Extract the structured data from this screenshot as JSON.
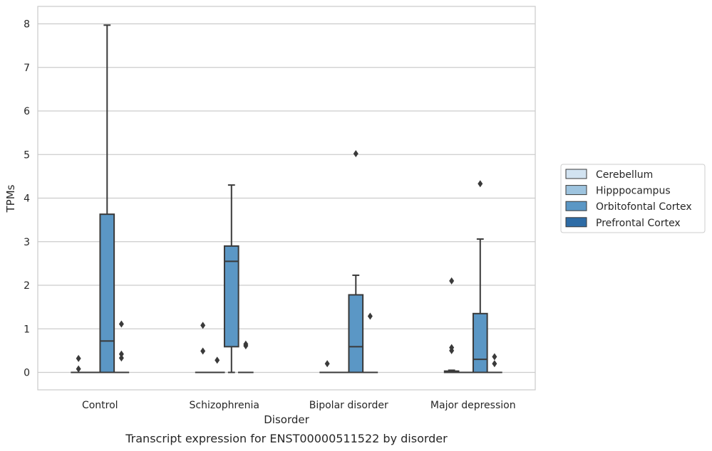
{
  "chart_data": {
    "type": "box",
    "xlabel": "Disorder",
    "ylabel": "TPMs",
    "caption": "Transcript expression for ENST00000511522 by disorder",
    "categories": [
      "Control",
      "Schizophrenia",
      "Bipolar disorder",
      "Major depression"
    ],
    "yticks": [
      "0",
      "1",
      "2",
      "3",
      "4",
      "5",
      "6",
      "7",
      "8"
    ],
    "ylim": [
      -0.4,
      8.4
    ],
    "grid": "horizontal",
    "legend_position": "right",
    "series": [
      {
        "name": "Cerebellum",
        "color": "#d2e3f1",
        "boxes": [
          {
            "min": 0,
            "q1": 0,
            "median": 0,
            "q3": 0,
            "max": 0,
            "outliers": [
              0.08,
              0.32
            ]
          },
          {
            "min": 0,
            "q1": 0,
            "median": 0,
            "q3": 0,
            "max": 0,
            "outliers": [
              0.49,
              1.08
            ]
          },
          {
            "min": 0,
            "q1": 0,
            "median": 0,
            "q3": 0,
            "max": 0,
            "outliers": [
              0.2
            ]
          },
          {
            "min": 0,
            "q1": 0,
            "median": 0.01,
            "q3": 0.03,
            "max": 0.05,
            "outliers": [
              0.5,
              0.57,
              2.1
            ]
          }
        ]
      },
      {
        "name": "Hipppocampus",
        "color": "#9ec4df",
        "boxes": [
          {
            "min": 0,
            "q1": 0,
            "median": 0,
            "q3": 0,
            "max": 0,
            "outliers": []
          },
          {
            "min": 0,
            "q1": 0,
            "median": 0,
            "q3": 0,
            "max": 0,
            "outliers": [
              0.28
            ]
          },
          {
            "min": 0,
            "q1": 0,
            "median": 0,
            "q3": 0,
            "max": 0,
            "outliers": []
          },
          {
            "min": 0,
            "q1": 0,
            "median": 0,
            "q3": 0,
            "max": 0,
            "outliers": []
          }
        ]
      },
      {
        "name": "Orbitofontal Cortex",
        "color": "#5b97c5",
        "boxes": [
          {
            "min": 0,
            "q1": 0,
            "median": 0.72,
            "q3": 3.63,
            "max": 7.97,
            "outliers": []
          },
          {
            "min": 0,
            "q1": 0.59,
            "median": 2.55,
            "q3": 2.9,
            "max": 4.3,
            "outliers": []
          },
          {
            "min": 0,
            "q1": 0,
            "median": 0.59,
            "q3": 1.78,
            "max": 2.23,
            "outliers": [
              5.02
            ]
          },
          {
            "min": 0,
            "q1": 0,
            "median": 0.3,
            "q3": 1.35,
            "max": 3.06,
            "outliers": [
              4.33
            ]
          }
        ]
      },
      {
        "name": "Prefrontal Cortex",
        "color": "#2e6ca6",
        "boxes": [
          {
            "min": 0,
            "q1": 0,
            "median": 0,
            "q3": 0,
            "max": 0,
            "outliers": [
              0.33,
              0.42,
              1.11
            ]
          },
          {
            "min": 0,
            "q1": 0,
            "median": 0,
            "q3": 0,
            "max": 0,
            "outliers": [
              0.61,
              0.65
            ]
          },
          {
            "min": 0,
            "q1": 0,
            "median": 0,
            "q3": 0,
            "max": 0,
            "outliers": [
              1.29
            ]
          },
          {
            "min": 0,
            "q1": 0,
            "median": 0,
            "q3": 0,
            "max": 0,
            "outliers": [
              0.2,
              0.36
            ]
          }
        ]
      }
    ]
  }
}
